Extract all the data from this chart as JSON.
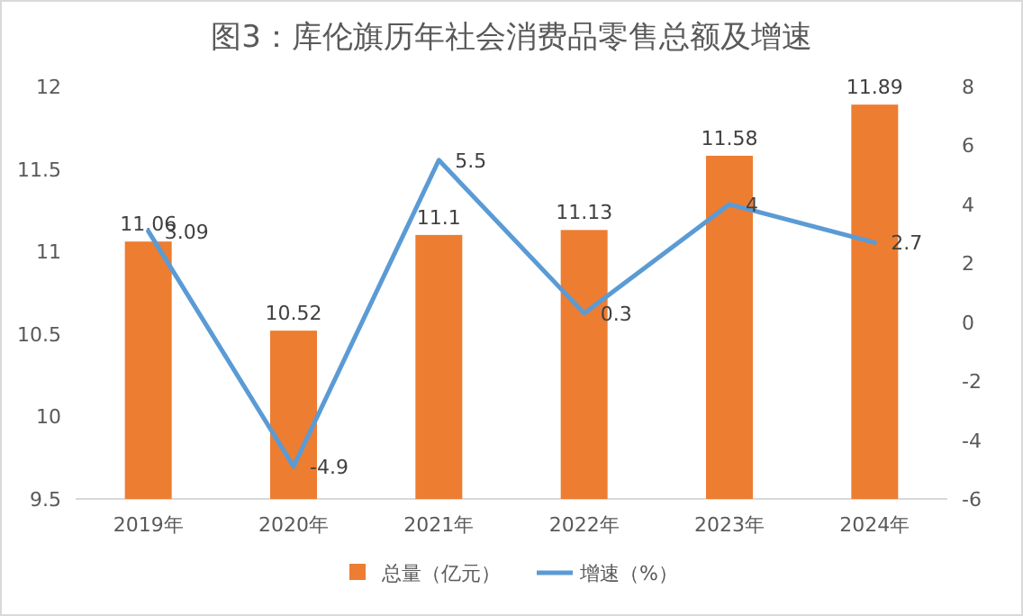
{
  "chart_data": {
    "type": "bar",
    "title": "图3：库伦旗历年社会消费品零售总额及增速",
    "categories": [
      "2019年",
      "2020年",
      "2021年",
      "2022年",
      "2023年",
      "2024年"
    ],
    "series": [
      {
        "name": "总量（亿元）",
        "color": "#ed7d31",
        "values": [
          11.06,
          10.52,
          11.1,
          11.13,
          11.58,
          11.89
        ]
      },
      {
        "name": "增速（%）",
        "type": "line",
        "axis": "y2",
        "color": "#5b9bd5",
        "values": [
          3.09,
          -4.9,
          5.5,
          0.3,
          4,
          2.7
        ]
      }
    ],
    "ylim": [
      9.5,
      12
    ],
    "yticks": [
      9.5,
      10,
      10.5,
      11,
      11.5,
      12
    ],
    "y2lim": [
      -6,
      8
    ],
    "y2ticks": [
      -6,
      -4,
      -2,
      0,
      2,
      4,
      6,
      8
    ],
    "data_labels": true,
    "legend": "bottom",
    "marker": "none",
    "line_style": "solid"
  }
}
